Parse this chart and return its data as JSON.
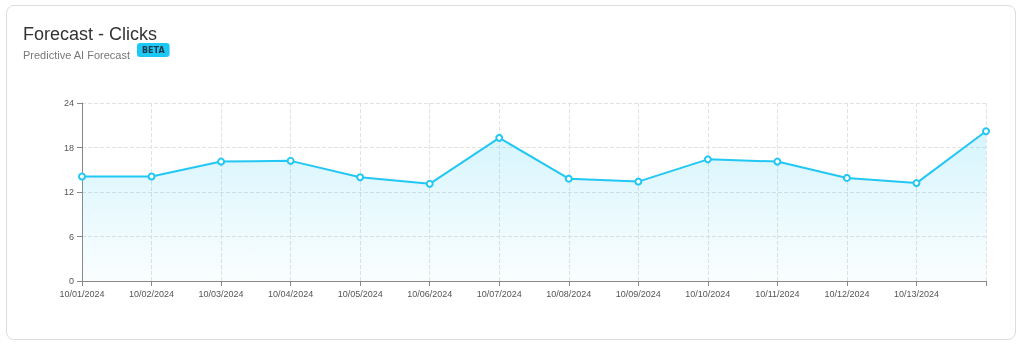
{
  "chart_data": {
    "type": "area",
    "title": "Forecast - Clicks",
    "subtitle": "Predictive AI Forecast",
    "annotations": [
      "BETA"
    ],
    "categories": [
      "10/01/2024",
      "10/02/2024",
      "10/03/2024",
      "10/04/2024",
      "10/05/2024",
      "10/06/2024",
      "10/07/2024",
      "10/08/2024",
      "10/09/2024",
      "10/10/2024",
      "10/11/2024",
      "10/12/2024",
      "10/13/2024",
      null
    ],
    "series": [
      {
        "color": "#22c7f3",
        "values": [
          14.1,
          14.1,
          16.1,
          16.2,
          14.0,
          13.1,
          19.3,
          13.8,
          13.4,
          16.4,
          16.1,
          13.9,
          13.2,
          20.2
        ]
      }
    ],
    "ylim": [
      0,
      24
    ],
    "yticks": [
      0,
      6,
      12,
      18,
      24
    ],
    "grid": true,
    "marker": "circle",
    "line_style": "solid"
  }
}
